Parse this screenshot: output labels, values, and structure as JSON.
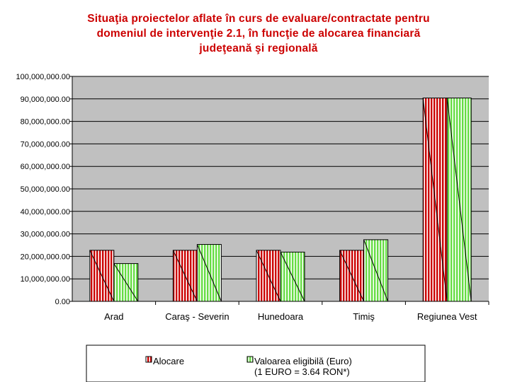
{
  "chart_data": {
    "type": "bar",
    "title_lines": [
      "Situaţia proiectelor aflate în curs de evaluare/contractate pentru",
      "domeniul de intervenţie 2.1, în funcţie de alocarea financiară",
      "judeţeană şi regională"
    ],
    "categories": [
      "Arad",
      "Caraş - Severin",
      "Hunedoara",
      "Timiş",
      "Regiunea Vest"
    ],
    "series": [
      {
        "name": "Alocare",
        "values": [
          22700000,
          22700000,
          22700000,
          22700000,
          90400000
        ]
      },
      {
        "name": "Valoarea eligibilă (Euro) (1 EURO = 3.64 RON*)",
        "values": [
          16800000,
          25300000,
          21900000,
          27400000,
          90400000
        ]
      }
    ],
    "ylim": [
      0,
      100000000
    ],
    "yticks": [
      0,
      10000000,
      20000000,
      30000000,
      40000000,
      50000000,
      60000000,
      70000000,
      80000000,
      90000000,
      100000000
    ],
    "ytick_labels": [
      "0.00",
      "10,000,000.00",
      "20,000,000.00",
      "30,000,000.00",
      "40,000,000.00",
      "50,000,000.00",
      "60,000,000.00",
      "70,000,000.00",
      "80,000,000.00",
      "90,000,000.00",
      "100,000,000.00"
    ],
    "legend": {
      "placement": "bottom",
      "labels": [
        "Alocare",
        "Valoarea eligibilă (Euro)",
        "(1 EURO = 3.64 RON*)"
      ]
    },
    "grid": true,
    "colors": {
      "Alocare": "#cc0000",
      "Valoarea eligibilă": "#66dd44",
      "plot_background": "#c0c0c0",
      "title": "#cc0000"
    }
  }
}
